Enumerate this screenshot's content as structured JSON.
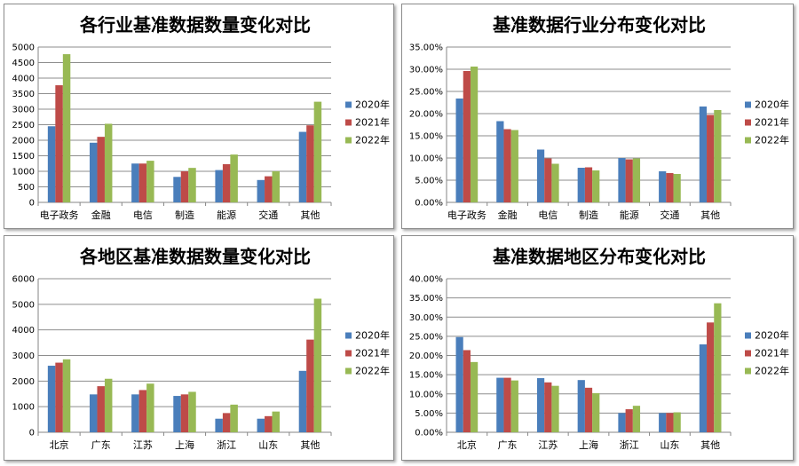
{
  "colors": {
    "2020": "#4a7ebb",
    "2021": "#be4b48",
    "2022": "#98b954"
  },
  "chart_data": [
    {
      "type": "bar",
      "title": "各行业基准数据数量变化对比",
      "categories": [
        "电子政务",
        "金融",
        "电信",
        "制造",
        "能源",
        "交通",
        "其他"
      ],
      "series": [
        {
          "name": "2020年",
          "values": [
            2450,
            1920,
            1250,
            820,
            1040,
            720,
            2270
          ]
        },
        {
          "name": "2021年",
          "values": [
            3770,
            2110,
            1250,
            1000,
            1230,
            840,
            2480
          ]
        },
        {
          "name": "2022年",
          "values": [
            4770,
            2530,
            1340,
            1110,
            1540,
            1000,
            3240
          ]
        }
      ],
      "ylim": [
        0,
        5000
      ],
      "yticks": [
        "0",
        "500",
        "1000",
        "1500",
        "2000",
        "2500",
        "3000",
        "3500",
        "4000",
        "4500",
        "5000"
      ],
      "grid": true,
      "legend": "right"
    },
    {
      "type": "bar",
      "title": "基准数据行业分布变化对比",
      "categories": [
        "电子政务",
        "金融",
        "电信",
        "制造",
        "能源",
        "交通",
        "其他"
      ],
      "series": [
        {
          "name": "2020年",
          "values": [
            0.234,
            0.183,
            0.119,
            0.078,
            0.1,
            0.07,
            0.216
          ]
        },
        {
          "name": "2021年",
          "values": [
            0.296,
            0.165,
            0.099,
            0.079,
            0.097,
            0.066,
            0.197
          ]
        },
        {
          "name": "2022年",
          "values": [
            0.306,
            0.163,
            0.087,
            0.072,
            0.099,
            0.064,
            0.208
          ]
        }
      ],
      "ylim": [
        0,
        0.35
      ],
      "yticks": [
        "0.00%",
        "5.00%",
        "10.00%",
        "15.00%",
        "20.00%",
        "25.00%",
        "30.00%",
        "35.00%"
      ],
      "grid": true,
      "legend": "right"
    },
    {
      "type": "bar",
      "title": "各地区基准数据数量变化对比",
      "categories": [
        "北京",
        "广东",
        "江苏",
        "上海",
        "浙江",
        "山东",
        "其他"
      ],
      "series": [
        {
          "name": "2020年",
          "values": [
            2600,
            1480,
            1480,
            1420,
            530,
            530,
            2400
          ]
        },
        {
          "name": "2021年",
          "values": [
            2720,
            1800,
            1650,
            1480,
            750,
            630,
            3620
          ]
        },
        {
          "name": "2022年",
          "values": [
            2850,
            2090,
            1900,
            1580,
            1080,
            810,
            5220
          ]
        }
      ],
      "ylim": [
        0,
        6000
      ],
      "yticks": [
        "0",
        "1000",
        "2000",
        "3000",
        "4000",
        "5000",
        "6000"
      ],
      "grid": true,
      "legend": "right"
    },
    {
      "type": "bar",
      "title": "基准数据地区分布变化对比",
      "categories": [
        "北京",
        "广东",
        "江苏",
        "上海",
        "浙江",
        "山东",
        "其他"
      ],
      "series": [
        {
          "name": "2020年",
          "values": [
            0.248,
            0.142,
            0.141,
            0.136,
            0.05,
            0.05,
            0.229
          ]
        },
        {
          "name": "2021年",
          "values": [
            0.214,
            0.142,
            0.13,
            0.116,
            0.06,
            0.05,
            0.286
          ]
        },
        {
          "name": "2022年",
          "values": [
            0.183,
            0.135,
            0.121,
            0.102,
            0.069,
            0.052,
            0.336
          ]
        }
      ],
      "ylim": [
        0,
        0.4
      ],
      "yticks": [
        "0.00%",
        "5.00%",
        "10.00%",
        "15.00%",
        "20.00%",
        "25.00%",
        "30.00%",
        "35.00%",
        "40.00%"
      ],
      "grid": true,
      "legend": "right"
    }
  ]
}
